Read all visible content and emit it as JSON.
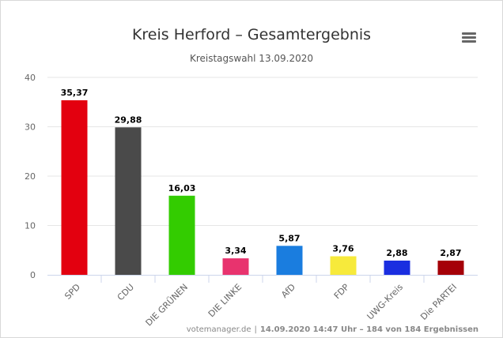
{
  "chart_data": {
    "type": "bar",
    "title": "Kreis Herford – Gesamtergebnis",
    "subtitle": "Kreistagswahl 13.09.2020",
    "categories": [
      "SPD",
      "CDU",
      "DIE GRÜNEN",
      "DIE LINKE",
      "AfD",
      "FDP",
      "UWG-Kreis",
      "Die PARTEI"
    ],
    "values": [
      35.37,
      29.88,
      16.03,
      3.34,
      5.87,
      3.76,
      2.88,
      2.87
    ],
    "value_labels": [
      "35,37",
      "29,88",
      "16,03",
      "3,34",
      "5,87",
      "3,76",
      "2,88",
      "2,87"
    ],
    "colors": [
      "#e3000f",
      "#4a4a4a",
      "#33cc00",
      "#e8336e",
      "#1a7ddf",
      "#f7ea3b",
      "#1a2ee0",
      "#a50008"
    ],
    "ylim": [
      0,
      40
    ],
    "yticks": [
      "0",
      "10",
      "20",
      "30",
      "40"
    ],
    "ytick_values": [
      0,
      10,
      20,
      30,
      40
    ],
    "grid": true,
    "legend": false
  },
  "credits": {
    "source": "votemanager.de",
    "separator": "|",
    "detail": "14.09.2020 14:47 Uhr – 184 von 184 Ergebnissen"
  },
  "menu": {
    "icon": "hamburger-menu-icon"
  }
}
